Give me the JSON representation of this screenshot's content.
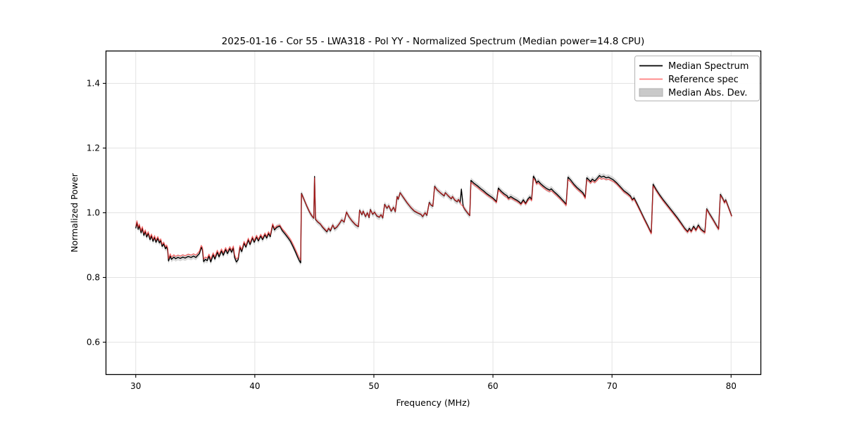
{
  "chart_data": {
    "type": "line",
    "title": "2025-01-16 - Cor 55 - LWA318 - Pol YY - Normalized Spectrum (Median power=14.8 CPU)",
    "xlabel": "Frequency (MHz)",
    "ylabel": "Normalized Power",
    "xlim": [
      27.5,
      82.5
    ],
    "ylim": [
      0.5,
      1.5
    ],
    "xticks": [
      30,
      40,
      50,
      60,
      70,
      80
    ],
    "xtick_labels": [
      "30",
      "40",
      "50",
      "60",
      "70",
      "80"
    ],
    "yticks": [
      0.6,
      0.8,
      1.0,
      1.2,
      1.4
    ],
    "ytick_labels": [
      "0.6",
      "0.8",
      "1.0",
      "1.2",
      "1.4"
    ],
    "grid": true,
    "legend_position": "upper right",
    "legend": [
      {
        "label": "Median Spectrum",
        "type": "line",
        "color": "#000000"
      },
      {
        "label": "Reference spec",
        "type": "line",
        "color": "#ff2a2a",
        "alpha": 0.6
      },
      {
        "label": "Median Abs. Dev.",
        "type": "patch",
        "color": "#c9c9c9"
      }
    ],
    "colors": {
      "median_line": "#000000",
      "reference_line": "#ff2a2a",
      "reference_alpha": 0.65,
      "mad_band": "#bfbfbf",
      "grid_line": "#e3e3e3",
      "plot_border": "#000000"
    },
    "mad_halfwidth": 0.009,
    "x_unit": "MHz",
    "points_format": [
      "frequency_mhz",
      "median_power",
      "reference_power"
    ],
    "points": [
      [
        30.0,
        0.952,
        0.958
      ],
      [
        30.1,
        0.97,
        0.975
      ],
      [
        30.2,
        0.949,
        0.955
      ],
      [
        30.3,
        0.96,
        0.965
      ],
      [
        30.45,
        0.938,
        0.944
      ],
      [
        30.55,
        0.952,
        0.957
      ],
      [
        30.68,
        0.93,
        0.936
      ],
      [
        30.8,
        0.942,
        0.947
      ],
      [
        30.92,
        0.925,
        0.931
      ],
      [
        31.05,
        0.936,
        0.941
      ],
      [
        31.2,
        0.917,
        0.923
      ],
      [
        31.32,
        0.929,
        0.934
      ],
      [
        31.45,
        0.912,
        0.918
      ],
      [
        31.58,
        0.924,
        0.929
      ],
      [
        31.7,
        0.909,
        0.915
      ],
      [
        31.85,
        0.921,
        0.926
      ],
      [
        31.98,
        0.907,
        0.913
      ],
      [
        32.1,
        0.914,
        0.919
      ],
      [
        32.22,
        0.896,
        0.902
      ],
      [
        32.35,
        0.904,
        0.909
      ],
      [
        32.5,
        0.889,
        0.895
      ],
      [
        32.6,
        0.895,
        0.9
      ],
      [
        32.68,
        0.885,
        0.891
      ],
      [
        32.75,
        0.851,
        0.858
      ],
      [
        32.9,
        0.866,
        0.873
      ],
      [
        33.0,
        0.856,
        0.863
      ],
      [
        33.2,
        0.863,
        0.87
      ],
      [
        33.35,
        0.858,
        0.865
      ],
      [
        33.55,
        0.862,
        0.869
      ],
      [
        33.75,
        0.859,
        0.866
      ],
      [
        33.95,
        0.863,
        0.87
      ],
      [
        34.15,
        0.86,
        0.867
      ],
      [
        34.4,
        0.865,
        0.872
      ],
      [
        34.65,
        0.862,
        0.869
      ],
      [
        34.85,
        0.866,
        0.873
      ],
      [
        35.05,
        0.862,
        0.869
      ],
      [
        35.2,
        0.868,
        0.875
      ],
      [
        35.35,
        0.874,
        0.881
      ],
      [
        35.5,
        0.893,
        0.899
      ],
      [
        35.6,
        0.886,
        0.893
      ],
      [
        35.7,
        0.849,
        0.857
      ],
      [
        35.85,
        0.856,
        0.863
      ],
      [
        36.0,
        0.852,
        0.86
      ],
      [
        36.15,
        0.866,
        0.872
      ],
      [
        36.3,
        0.848,
        0.857
      ],
      [
        36.5,
        0.87,
        0.876
      ],
      [
        36.65,
        0.857,
        0.864
      ],
      [
        36.85,
        0.878,
        0.884
      ],
      [
        37.0,
        0.864,
        0.871
      ],
      [
        37.2,
        0.882,
        0.888
      ],
      [
        37.35,
        0.869,
        0.876
      ],
      [
        37.55,
        0.886,
        0.892
      ],
      [
        37.7,
        0.874,
        0.881
      ],
      [
        37.9,
        0.889,
        0.895
      ],
      [
        38.05,
        0.878,
        0.885
      ],
      [
        38.2,
        0.891,
        0.897
      ],
      [
        38.3,
        0.862,
        0.87
      ],
      [
        38.45,
        0.848,
        0.857
      ],
      [
        38.6,
        0.855,
        0.862
      ],
      [
        38.75,
        0.893,
        0.898
      ],
      [
        38.9,
        0.88,
        0.886
      ],
      [
        39.1,
        0.906,
        0.911
      ],
      [
        39.25,
        0.894,
        0.899
      ],
      [
        39.45,
        0.916,
        0.921
      ],
      [
        39.6,
        0.902,
        0.907
      ],
      [
        39.8,
        0.922,
        0.927
      ],
      [
        39.95,
        0.909,
        0.914
      ],
      [
        40.15,
        0.925,
        0.93
      ],
      [
        40.3,
        0.913,
        0.918
      ],
      [
        40.5,
        0.928,
        0.933
      ],
      [
        40.65,
        0.917,
        0.922
      ],
      [
        40.85,
        0.932,
        0.937
      ],
      [
        41.0,
        0.922,
        0.927
      ],
      [
        41.15,
        0.936,
        0.941
      ],
      [
        41.3,
        0.926,
        0.931
      ],
      [
        41.5,
        0.962,
        0.966
      ],
      [
        41.65,
        0.947,
        0.952
      ],
      [
        41.85,
        0.955,
        0.959
      ],
      [
        42.1,
        0.959,
        0.962
      ],
      [
        42.3,
        0.945,
        0.95
      ],
      [
        42.55,
        0.934,
        0.94
      ],
      [
        42.8,
        0.922,
        0.928
      ],
      [
        43.0,
        0.911,
        0.918
      ],
      [
        43.2,
        0.896,
        0.904
      ],
      [
        43.4,
        0.88,
        0.888
      ],
      [
        43.6,
        0.863,
        0.872
      ],
      [
        43.75,
        0.851,
        0.86
      ],
      [
        43.85,
        0.845,
        0.854
      ],
      [
        43.92,
        1.06,
        1.058
      ],
      [
        44.1,
        1.044,
        1.044
      ],
      [
        44.35,
        1.022,
        1.023
      ],
      [
        44.6,
        1.002,
        1.003
      ],
      [
        44.8,
        0.99,
        0.991
      ],
      [
        44.95,
        0.983,
        0.984
      ],
      [
        45.02,
        1.112,
        1.108
      ],
      [
        45.1,
        0.979,
        0.981
      ],
      [
        45.3,
        0.971,
        0.972
      ],
      [
        45.5,
        0.965,
        0.966
      ],
      [
        45.7,
        0.955,
        0.957
      ],
      [
        45.9,
        0.947,
        0.949
      ],
      [
        46.05,
        0.941,
        0.943
      ],
      [
        46.2,
        0.952,
        0.953
      ],
      [
        46.35,
        0.944,
        0.946
      ],
      [
        46.55,
        0.962,
        0.962
      ],
      [
        46.7,
        0.95,
        0.952
      ],
      [
        46.9,
        0.956,
        0.957
      ],
      [
        47.1,
        0.966,
        0.967
      ],
      [
        47.3,
        0.978,
        0.978
      ],
      [
        47.5,
        0.971,
        0.972
      ],
      [
        47.7,
        1.002,
        1.002
      ],
      [
        47.9,
        0.988,
        0.988
      ],
      [
        48.15,
        0.975,
        0.976
      ],
      [
        48.45,
        0.963,
        0.964
      ],
      [
        48.7,
        0.957,
        0.958
      ],
      [
        48.8,
        1.008,
        1.007
      ],
      [
        49.0,
        0.994,
        0.995
      ],
      [
        49.1,
        1.005,
        1.005
      ],
      [
        49.3,
        0.988,
        0.989
      ],
      [
        49.45,
        1.0,
        1.0
      ],
      [
        49.6,
        0.985,
        0.986
      ],
      [
        49.7,
        1.01,
        1.009
      ],
      [
        49.9,
        0.995,
        0.996
      ],
      [
        50.05,
        1.002,
        1.002
      ],
      [
        50.25,
        0.99,
        0.991
      ],
      [
        50.45,
        0.986,
        0.987
      ],
      [
        50.6,
        0.994,
        0.994
      ],
      [
        50.75,
        0.984,
        0.985
      ],
      [
        50.9,
        1.026,
        1.025
      ],
      [
        51.1,
        1.014,
        1.015
      ],
      [
        51.25,
        1.022,
        1.022
      ],
      [
        51.45,
        1.005,
        1.006
      ],
      [
        51.65,
        1.017,
        1.017
      ],
      [
        51.8,
        1.003,
        1.004
      ],
      [
        51.95,
        1.05,
        1.049
      ],
      [
        52.05,
        1.042,
        1.043
      ],
      [
        52.2,
        1.062,
        1.061
      ],
      [
        52.5,
        1.046,
        1.047
      ],
      [
        52.8,
        1.03,
        1.031
      ],
      [
        53.1,
        1.016,
        1.017
      ],
      [
        53.4,
        1.005,
        1.006
      ],
      [
        53.7,
        0.999,
        1.0
      ],
      [
        53.95,
        0.995,
        0.996
      ],
      [
        54.1,
        0.988,
        0.989
      ],
      [
        54.3,
        1.0,
        1.0
      ],
      [
        54.45,
        0.992,
        0.993
      ],
      [
        54.65,
        1.032,
        1.03
      ],
      [
        54.8,
        1.024,
        1.025
      ],
      [
        54.95,
        1.02,
        1.021
      ],
      [
        55.1,
        1.082,
        1.08
      ],
      [
        55.3,
        1.071,
        1.072
      ],
      [
        55.6,
        1.061,
        1.062
      ],
      [
        55.9,
        1.052,
        1.053
      ],
      [
        56.0,
        1.062,
        1.061
      ],
      [
        56.3,
        1.05,
        1.051
      ],
      [
        56.5,
        1.043,
        1.044
      ],
      [
        56.6,
        1.05,
        1.05
      ],
      [
        56.8,
        1.039,
        1.04
      ],
      [
        57.0,
        1.034,
        1.035
      ],
      [
        57.1,
        1.041,
        1.041
      ],
      [
        57.25,
        1.031,
        1.032
      ],
      [
        57.35,
        1.073,
        1.024
      ],
      [
        57.5,
        1.019,
        1.02
      ],
      [
        57.65,
        1.01,
        1.011
      ],
      [
        57.85,
        1.0,
        1.001
      ],
      [
        58.05,
        0.991,
        0.992
      ],
      [
        58.15,
        1.1,
        1.094
      ],
      [
        58.4,
        1.091,
        1.086
      ],
      [
        58.7,
        1.083,
        1.078
      ],
      [
        58.95,
        1.075,
        1.07
      ],
      [
        59.2,
        1.068,
        1.063
      ],
      [
        59.45,
        1.06,
        1.056
      ],
      [
        59.7,
        1.053,
        1.049
      ],
      [
        59.95,
        1.047,
        1.043
      ],
      [
        60.15,
        1.04,
        1.036
      ],
      [
        60.3,
        1.034,
        1.031
      ],
      [
        60.45,
        1.076,
        1.07
      ],
      [
        60.7,
        1.066,
        1.061
      ],
      [
        60.95,
        1.058,
        1.053
      ],
      [
        61.2,
        1.052,
        1.047
      ],
      [
        61.3,
        1.045,
        1.041
      ],
      [
        61.5,
        1.05,
        1.045
      ],
      [
        61.75,
        1.044,
        1.04
      ],
      [
        62.0,
        1.039,
        1.035
      ],
      [
        62.2,
        1.034,
        1.03
      ],
      [
        62.35,
        1.028,
        1.025
      ],
      [
        62.55,
        1.04,
        1.035
      ],
      [
        62.75,
        1.029,
        1.026
      ],
      [
        62.95,
        1.043,
        1.038
      ],
      [
        63.1,
        1.049,
        1.044
      ],
      [
        63.25,
        1.041,
        1.037
      ],
      [
        63.4,
        1.113,
        1.106
      ],
      [
        63.55,
        1.104,
        1.099
      ],
      [
        63.65,
        1.092,
        1.088
      ],
      [
        63.8,
        1.098,
        1.092
      ],
      [
        64.0,
        1.09,
        1.085
      ],
      [
        64.25,
        1.082,
        1.077
      ],
      [
        64.5,
        1.075,
        1.07
      ],
      [
        64.75,
        1.07,
        1.065
      ],
      [
        64.9,
        1.074,
        1.068
      ],
      [
        65.1,
        1.066,
        1.061
      ],
      [
        65.4,
        1.056,
        1.051
      ],
      [
        65.7,
        1.045,
        1.04
      ],
      [
        66.0,
        1.033,
        1.029
      ],
      [
        66.15,
        1.026,
        1.022
      ],
      [
        66.3,
        1.11,
        1.103
      ],
      [
        66.55,
        1.1,
        1.094
      ],
      [
        66.8,
        1.088,
        1.083
      ],
      [
        67.05,
        1.078,
        1.073
      ],
      [
        67.3,
        1.07,
        1.065
      ],
      [
        67.55,
        1.062,
        1.057
      ],
      [
        67.75,
        1.048,
        1.044
      ],
      [
        67.88,
        1.108,
        1.102
      ],
      [
        68.05,
        1.102,
        1.097
      ],
      [
        68.2,
        1.096,
        1.091
      ],
      [
        68.35,
        1.104,
        1.098
      ],
      [
        68.55,
        1.098,
        1.093
      ],
      [
        68.75,
        1.106,
        1.1
      ],
      [
        68.95,
        1.115,
        1.108
      ],
      [
        69.1,
        1.11,
        1.104
      ],
      [
        69.3,
        1.113,
        1.106
      ],
      [
        69.5,
        1.108,
        1.102
      ],
      [
        69.7,
        1.11,
        1.104
      ],
      [
        69.9,
        1.106,
        1.1
      ],
      [
        70.1,
        1.102,
        1.097
      ],
      [
        70.4,
        1.092,
        1.088
      ],
      [
        70.7,
        1.08,
        1.076
      ],
      [
        71.0,
        1.068,
        1.064
      ],
      [
        71.3,
        1.06,
        1.056
      ],
      [
        71.55,
        1.052,
        1.048
      ],
      [
        71.7,
        1.04,
        1.038
      ],
      [
        71.85,
        1.046,
        1.042
      ],
      [
        72.1,
        1.028,
        1.024
      ],
      [
        72.4,
        1.005,
        1.002
      ],
      [
        72.7,
        0.982,
        0.979
      ],
      [
        73.0,
        0.96,
        0.957
      ],
      [
        73.2,
        0.945,
        0.942
      ],
      [
        73.3,
        0.938,
        0.935
      ],
      [
        73.45,
        1.088,
        1.083
      ],
      [
        73.7,
        1.072,
        1.068
      ],
      [
        74.0,
        1.055,
        1.051
      ],
      [
        74.3,
        1.04,
        1.036
      ],
      [
        74.6,
        1.026,
        1.022
      ],
      [
        74.9,
        1.012,
        1.008
      ],
      [
        75.2,
        0.998,
        0.994
      ],
      [
        75.5,
        0.984,
        0.98
      ],
      [
        75.8,
        0.968,
        0.965
      ],
      [
        76.1,
        0.952,
        0.949
      ],
      [
        76.35,
        0.942,
        0.939
      ],
      [
        76.5,
        0.952,
        0.948
      ],
      [
        76.65,
        0.943,
        0.94
      ],
      [
        76.85,
        0.958,
        0.954
      ],
      [
        77.05,
        0.947,
        0.944
      ],
      [
        77.25,
        0.962,
        0.958
      ],
      [
        77.45,
        0.95,
        0.947
      ],
      [
        77.65,
        0.944,
        0.941
      ],
      [
        77.8,
        0.94,
        0.937
      ],
      [
        77.95,
        1.012,
        1.01
      ],
      [
        78.2,
        0.996,
        0.994
      ],
      [
        78.5,
        0.978,
        0.976
      ],
      [
        78.75,
        0.962,
        0.96
      ],
      [
        78.95,
        0.95,
        0.948
      ],
      [
        79.1,
        1.057,
        1.054
      ],
      [
        79.3,
        1.044,
        1.042
      ],
      [
        79.45,
        1.032,
        1.03
      ],
      [
        79.55,
        1.04,
        1.038
      ],
      [
        79.75,
        1.02,
        1.018
      ],
      [
        79.95,
        1.0,
        0.998
      ],
      [
        80.05,
        0.99,
        0.988
      ]
    ]
  }
}
